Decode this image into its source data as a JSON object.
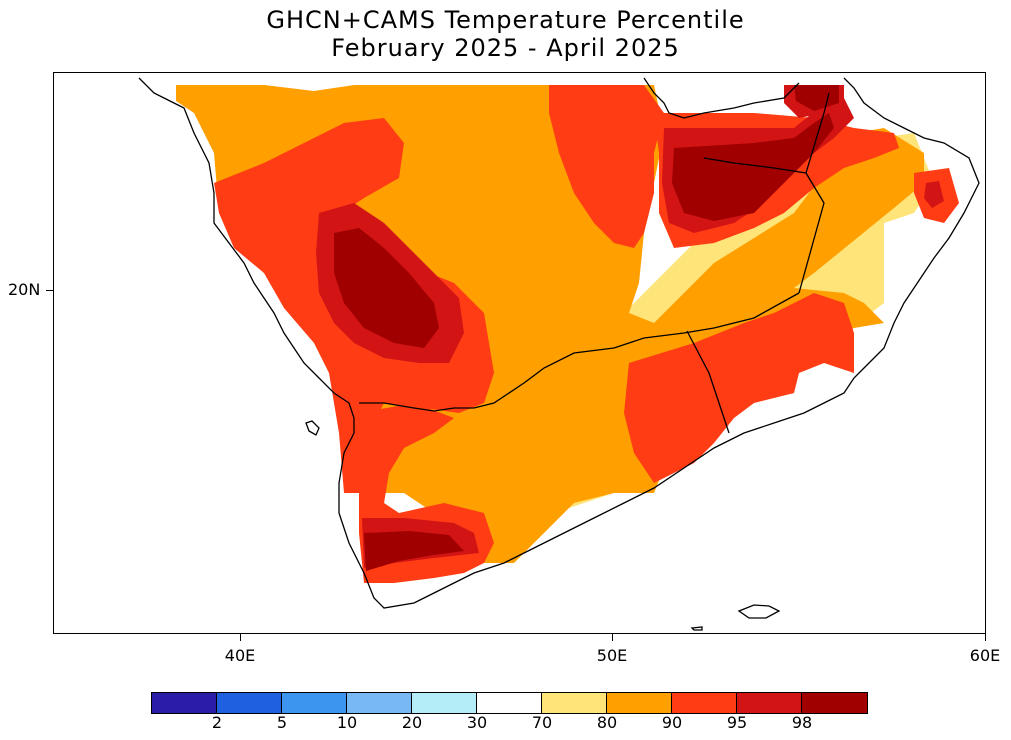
{
  "title": {
    "line1": "GHCN+CAMS Temperature Percentile",
    "line2": "February 2025 - April 2025"
  },
  "axes": {
    "x_ticks": [
      "40E",
      "50E",
      "60E"
    ],
    "y_ticks": [
      "20N"
    ]
  },
  "colorbar": {
    "colors": [
      "#2a1ea8",
      "#1e60e0",
      "#3c96f0",
      "#78b9f5",
      "#b4ecf8",
      "#ffffff",
      "#ffe47a",
      "#ffa000",
      "#ff3c14",
      "#d21414",
      "#a00000"
    ],
    "labels": [
      "2",
      "5",
      "10",
      "20",
      "30",
      "70",
      "80",
      "90",
      "95",
      "98"
    ]
  },
  "palette": {
    "white": "#ffffff",
    "light_yellow": "#ffe47a",
    "orange": "#ffa000",
    "red_orange": "#ff3c14",
    "red": "#d21414",
    "dark_red": "#a00000"
  }
}
